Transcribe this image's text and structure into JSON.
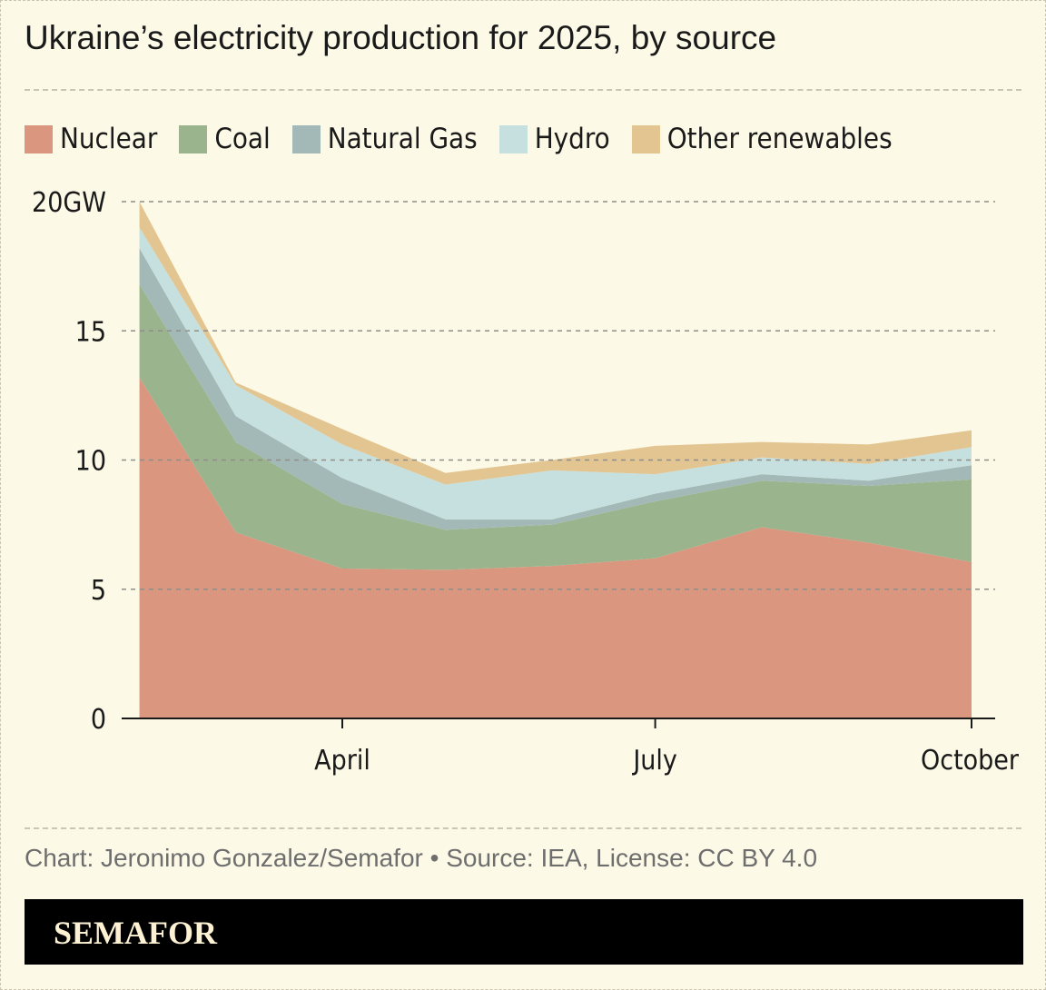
{
  "title": "Ukraine’s electricity production for 2025, by source",
  "footer": "Chart: Jeronimo Gonzalez/Semafor • Source: IEA, License: CC BY 4.0",
  "brand": "SEMAFOR",
  "chart_data": {
    "type": "area",
    "stacked": true,
    "x": [
      "2025-02-01",
      "2025-03-01",
      "2025-04-01",
      "2025-05-01",
      "2025-06-01",
      "2025-07-01",
      "2025-08-01",
      "2025-09-01",
      "2025-10-01"
    ],
    "series": [
      {
        "name": "Nuclear",
        "color": "#db9680",
        "values": [
          13.2,
          7.2,
          5.8,
          5.75,
          5.9,
          6.2,
          7.4,
          6.8,
          6.05
        ]
      },
      {
        "name": "Coal",
        "color": "#9ab48e",
        "values": [
          3.6,
          3.5,
          2.5,
          1.55,
          1.6,
          2.2,
          1.8,
          2.2,
          3.2
        ]
      },
      {
        "name": "Natural Gas",
        "color": "#a2b9b8",
        "values": [
          1.4,
          1.0,
          1.0,
          0.4,
          0.2,
          0.3,
          0.25,
          0.2,
          0.55
        ]
      },
      {
        "name": "Hydro",
        "color": "#c6e0e0",
        "values": [
          0.8,
          1.2,
          1.3,
          1.35,
          1.9,
          0.75,
          0.65,
          0.65,
          0.7
        ]
      },
      {
        "name": "Other renewables",
        "color": "#e3c591",
        "values": [
          1.0,
          0.1,
          0.6,
          0.45,
          0.4,
          1.1,
          0.6,
          0.75,
          0.65
        ]
      }
    ],
    "ylim": [
      0,
      20
    ],
    "yticks": [
      {
        "value": 0,
        "label": "0"
      },
      {
        "value": 5,
        "label": "5"
      },
      {
        "value": 10,
        "label": "10"
      },
      {
        "value": 15,
        "label": "15"
      },
      {
        "value": 20,
        "label": "20GW"
      }
    ],
    "xticks": [
      {
        "date": "2025-04-01",
        "label": "April"
      },
      {
        "date": "2025-07-01",
        "label": "July"
      },
      {
        "date": "2025-10-01",
        "label": "October"
      }
    ],
    "grid": true,
    "legend": "top"
  }
}
